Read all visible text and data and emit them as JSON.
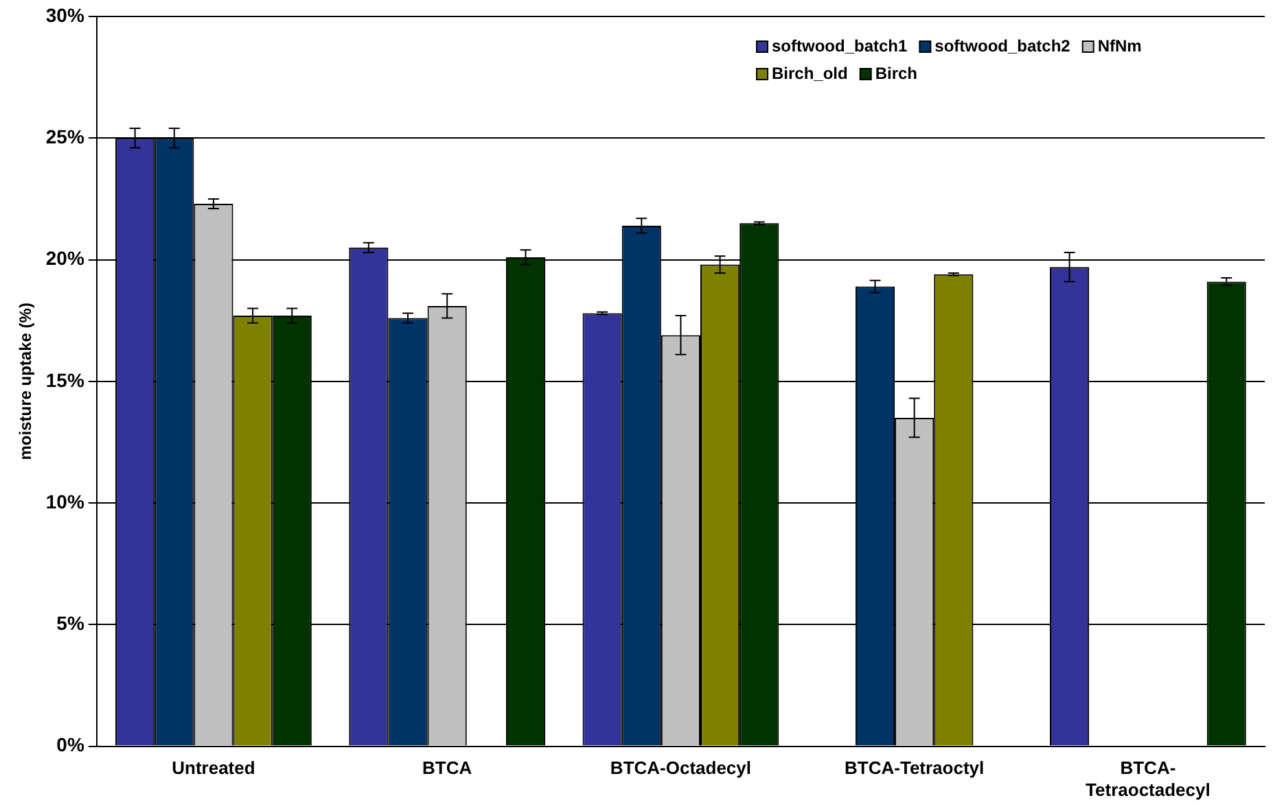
{
  "chart_data": {
    "type": "bar",
    "ylabel": "moisture uptake (%)",
    "categories": [
      "Untreated",
      "BTCA",
      "BTCA-Octadecyl",
      "BTCA-Tetraoctyl",
      "BTCA-Tetraoctadecyl"
    ],
    "series": [
      {
        "name": "softwood_batch1",
        "color": "#333399",
        "values": [
          25.0,
          20.5,
          17.8,
          null,
          19.7
        ],
        "errors": [
          0.4,
          0.2,
          0.05,
          null,
          0.6
        ]
      },
      {
        "name": "softwood_batch2",
        "color": "#003366",
        "values": [
          25.0,
          17.6,
          21.4,
          18.9,
          null
        ],
        "errors": [
          0.4,
          0.2,
          0.3,
          0.25,
          null
        ]
      },
      {
        "name": "NfNm",
        "color": "#c0c0c0",
        "values": [
          22.3,
          18.1,
          16.9,
          13.5,
          null
        ],
        "errors": [
          0.2,
          0.5,
          0.8,
          0.8,
          null
        ]
      },
      {
        "name": "Birch_old",
        "color": "#808000",
        "values": [
          17.7,
          null,
          19.8,
          19.4,
          null
        ],
        "errors": [
          0.3,
          null,
          0.35,
          0.05,
          null
        ]
      },
      {
        "name": "Birch",
        "color": "#003300",
        "values": [
          17.7,
          20.1,
          21.5,
          null,
          19.1
        ],
        "errors": [
          0.3,
          0.3,
          0.05,
          null,
          0.15
        ]
      }
    ],
    "ylim": [
      0,
      30
    ],
    "yticks": [
      {
        "value": 0,
        "label": "0%"
      },
      {
        "value": 5,
        "label": "5%"
      },
      {
        "value": 10,
        "label": "10%"
      },
      {
        "value": 15,
        "label": "15%"
      },
      {
        "value": 20,
        "label": "20%"
      },
      {
        "value": 25,
        "label": "25%"
      },
      {
        "value": 30,
        "label": "30%"
      }
    ],
    "grid": "y",
    "legend": "top right"
  }
}
